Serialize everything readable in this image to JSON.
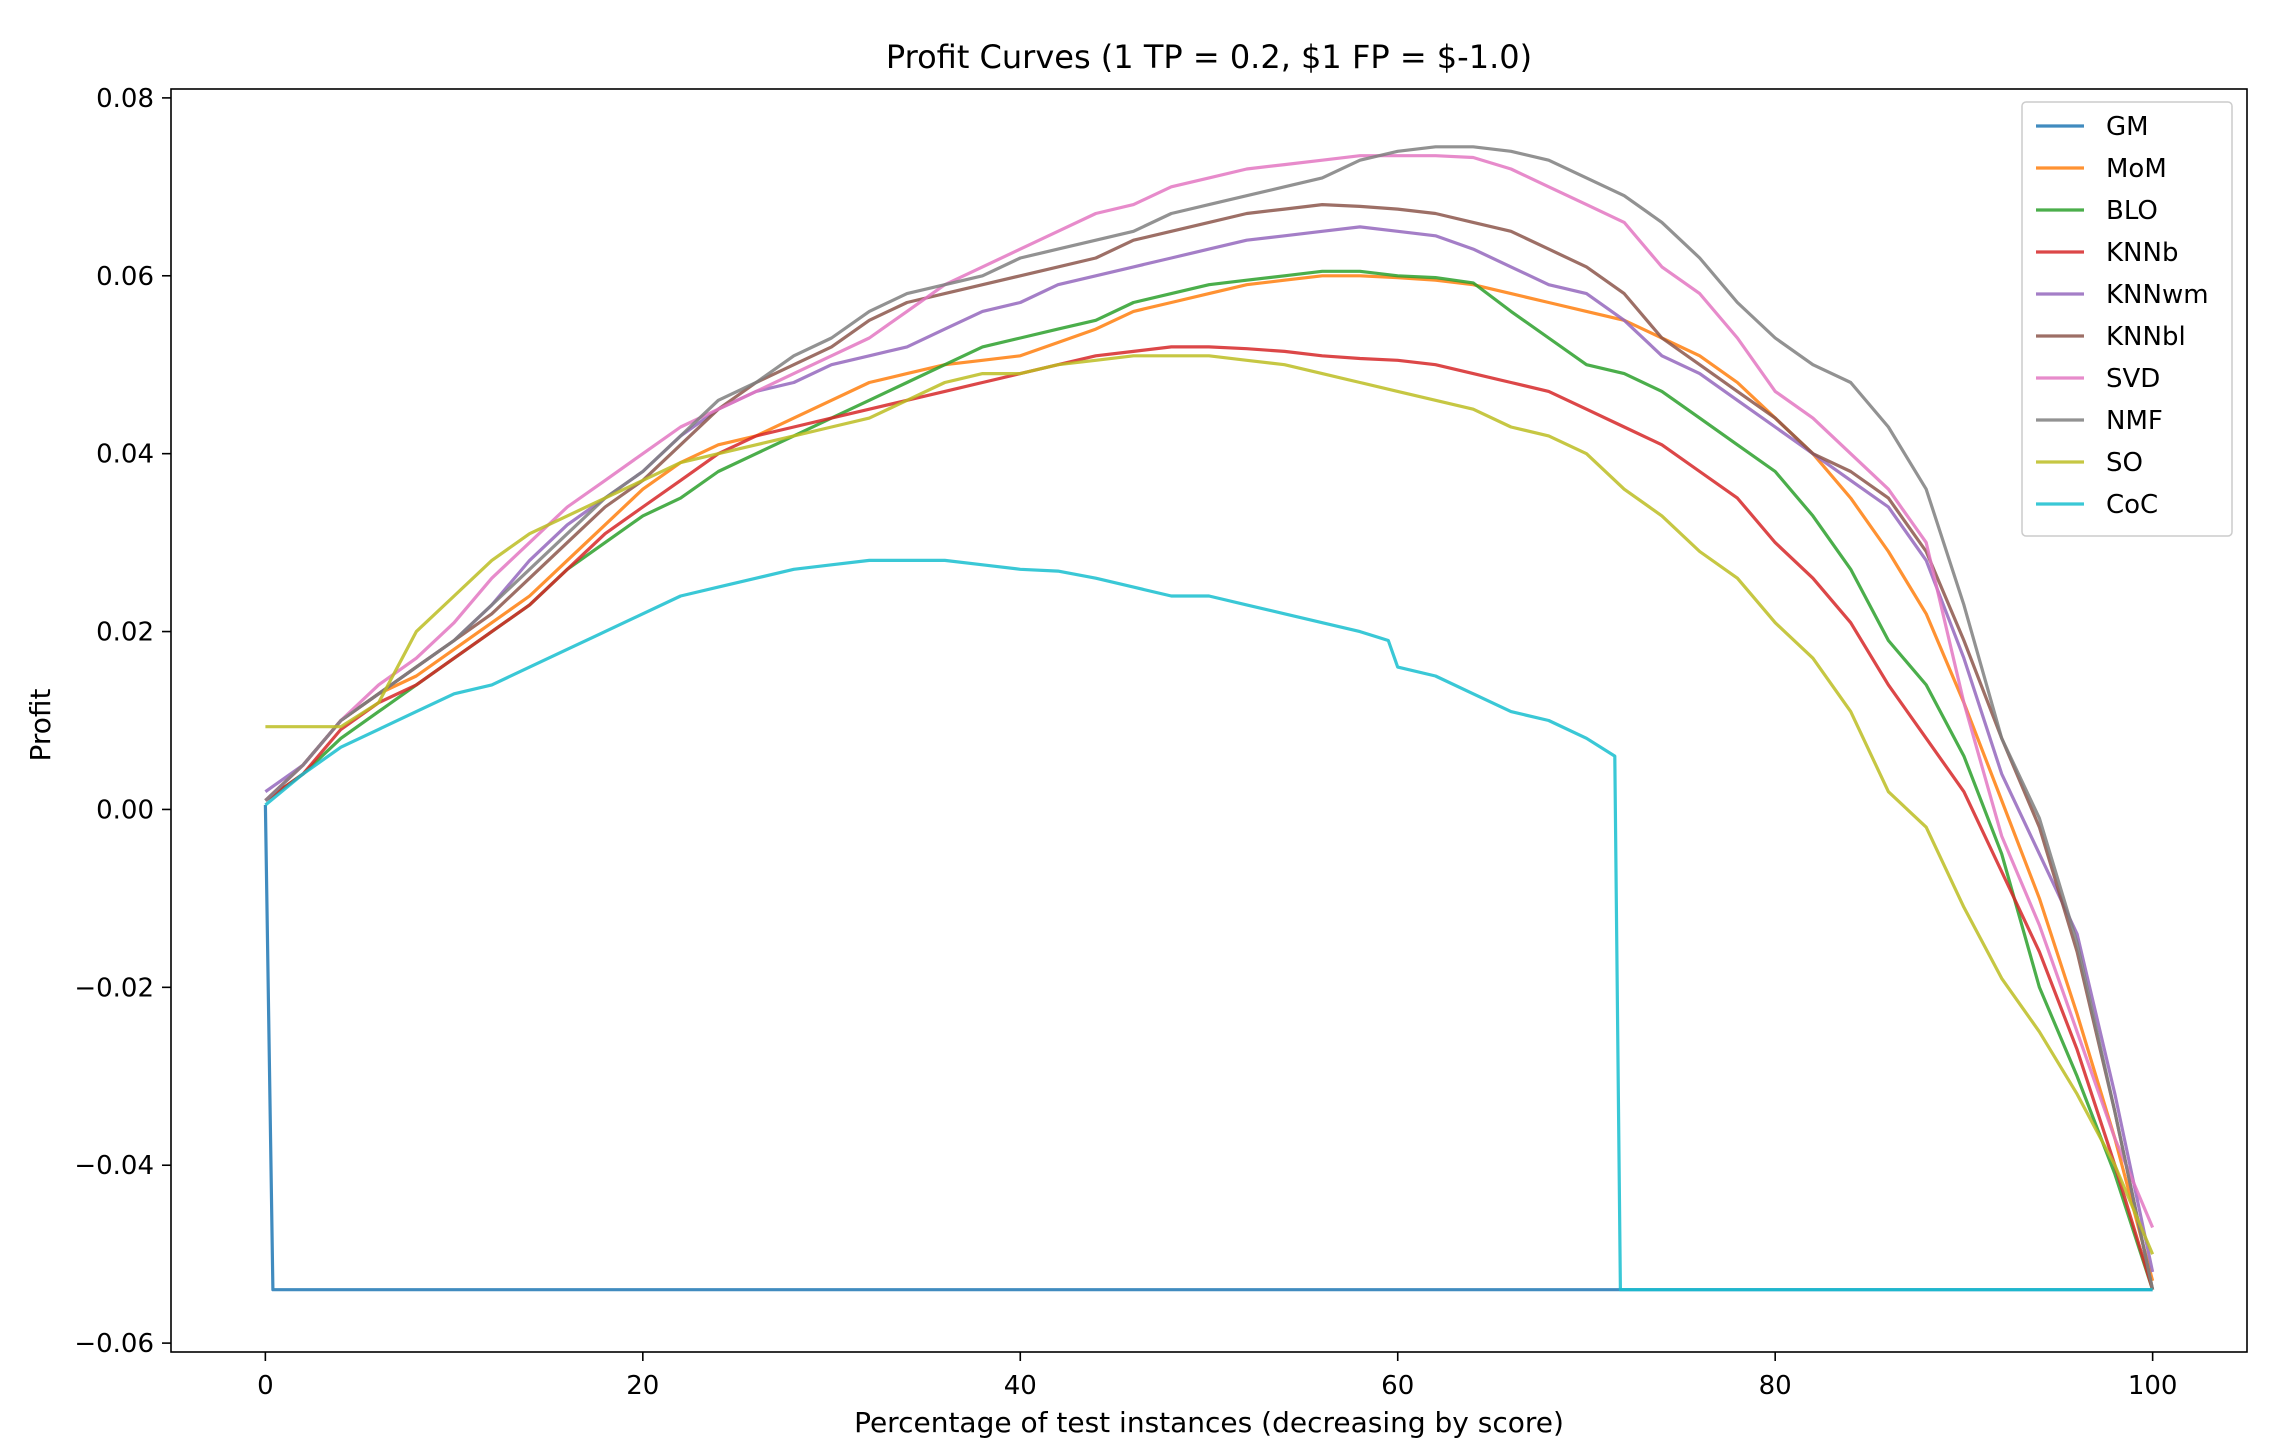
{
  "chart_data": {
    "type": "line",
    "title": "Profit Curves (1 TP = 0.2, $1 FP = $-1.0)",
    "xlabel": "Percentage of test instances (decreasing by score)",
    "ylabel": "Profit",
    "xlim": [
      -5,
      105
    ],
    "ylim": [
      -0.061,
      0.081
    ],
    "xticks": [
      0,
      20,
      40,
      60,
      80,
      100
    ],
    "yticks": [
      -0.06,
      -0.04,
      -0.02,
      0.0,
      0.02,
      0.04,
      0.06,
      0.08
    ],
    "xtick_labels": [
      "0",
      "20",
      "40",
      "60",
      "80",
      "100"
    ],
    "ytick_labels": [
      "−0.06",
      "−0.04",
      "−0.02",
      "0.00",
      "0.02",
      "0.04",
      "0.06",
      "0.08"
    ],
    "grid": false,
    "legend_position": "top-right",
    "series": [
      {
        "name": "GM",
        "color": "#1f77b4",
        "x": [
          0,
          0.4,
          100
        ],
        "y": [
          0.0005,
          -0.054,
          -0.054
        ]
      },
      {
        "name": "MoM",
        "color": "#ff7f0e",
        "x": [
          0,
          2,
          4,
          6,
          8,
          10,
          12,
          14,
          16,
          18,
          20,
          22,
          24,
          26,
          28,
          30,
          32,
          34,
          36,
          38,
          40,
          42,
          44,
          46,
          48,
          50,
          52,
          54,
          56,
          58,
          60,
          62,
          64,
          66,
          68,
          70,
          72,
          74,
          76,
          78,
          80,
          82,
          84,
          86,
          88,
          90,
          92,
          94,
          96,
          98,
          100
        ],
        "y": [
          0.001,
          0.005,
          0.01,
          0.013,
          0.015,
          0.018,
          0.021,
          0.024,
          0.028,
          0.032,
          0.036,
          0.039,
          0.041,
          0.042,
          0.044,
          0.046,
          0.048,
          0.049,
          0.05,
          0.0505,
          0.051,
          0.0525,
          0.054,
          0.056,
          0.057,
          0.058,
          0.059,
          0.0595,
          0.06,
          0.06,
          0.0598,
          0.0595,
          0.059,
          0.058,
          0.057,
          0.056,
          0.055,
          0.053,
          0.051,
          0.048,
          0.044,
          0.04,
          0.035,
          0.029,
          0.022,
          0.012,
          0.001,
          -0.01,
          -0.023,
          -0.037,
          -0.053
        ]
      },
      {
        "name": "BLO",
        "color": "#2ca02c",
        "x": [
          0,
          2,
          4,
          6,
          8,
          10,
          12,
          14,
          16,
          18,
          20,
          22,
          24,
          26,
          28,
          30,
          32,
          34,
          36,
          38,
          40,
          42,
          44,
          46,
          48,
          50,
          52,
          54,
          56,
          58,
          60,
          62,
          64,
          66,
          68,
          70,
          72,
          74,
          76,
          78,
          80,
          82,
          84,
          86,
          88,
          90,
          92,
          94,
          96,
          98,
          100
        ],
        "y": [
          0.001,
          0.004,
          0.008,
          0.011,
          0.014,
          0.017,
          0.02,
          0.023,
          0.027,
          0.03,
          0.033,
          0.035,
          0.038,
          0.04,
          0.042,
          0.044,
          0.046,
          0.048,
          0.05,
          0.052,
          0.053,
          0.054,
          0.055,
          0.057,
          0.058,
          0.059,
          0.0595,
          0.06,
          0.0605,
          0.0605,
          0.06,
          0.0598,
          0.0592,
          0.056,
          0.053,
          0.05,
          0.049,
          0.047,
          0.044,
          0.041,
          0.038,
          0.033,
          0.027,
          0.019,
          0.014,
          0.006,
          -0.005,
          -0.02,
          -0.03,
          -0.041,
          -0.054
        ]
      },
      {
        "name": "KNNb",
        "color": "#d62728",
        "x": [
          0,
          2,
          4,
          6,
          8,
          10,
          12,
          14,
          16,
          18,
          20,
          22,
          24,
          26,
          28,
          30,
          32,
          34,
          36,
          38,
          40,
          42,
          44,
          46,
          48,
          50,
          52,
          54,
          56,
          58,
          60,
          62,
          64,
          66,
          68,
          70,
          72,
          74,
          76,
          78,
          80,
          82,
          84,
          86,
          88,
          90,
          92,
          94,
          96,
          98,
          100
        ],
        "y": [
          0.001,
          0.004,
          0.009,
          0.012,
          0.014,
          0.017,
          0.02,
          0.023,
          0.027,
          0.031,
          0.034,
          0.037,
          0.04,
          0.042,
          0.043,
          0.044,
          0.045,
          0.046,
          0.047,
          0.048,
          0.049,
          0.05,
          0.051,
          0.0515,
          0.052,
          0.052,
          0.0518,
          0.0515,
          0.051,
          0.0507,
          0.0505,
          0.05,
          0.049,
          0.048,
          0.047,
          0.045,
          0.043,
          0.041,
          0.038,
          0.035,
          0.03,
          0.026,
          0.021,
          0.014,
          0.008,
          0.002,
          -0.007,
          -0.016,
          -0.027,
          -0.04,
          -0.054
        ]
      },
      {
        "name": "KNNwm",
        "color": "#9467bd",
        "x": [
          0,
          2,
          4,
          6,
          8,
          10,
          12,
          14,
          16,
          18,
          20,
          22,
          24,
          26,
          28,
          30,
          32,
          34,
          36,
          38,
          40,
          42,
          44,
          46,
          48,
          50,
          52,
          54,
          56,
          58,
          60,
          62,
          64,
          66,
          68,
          70,
          72,
          74,
          76,
          78,
          80,
          82,
          84,
          86,
          88,
          90,
          92,
          94,
          96,
          98,
          100
        ],
        "y": [
          0.002,
          0.005,
          0.01,
          0.013,
          0.016,
          0.019,
          0.023,
          0.028,
          0.032,
          0.035,
          0.038,
          0.042,
          0.045,
          0.047,
          0.048,
          0.05,
          0.051,
          0.052,
          0.054,
          0.056,
          0.057,
          0.059,
          0.06,
          0.061,
          0.062,
          0.063,
          0.064,
          0.0645,
          0.065,
          0.0655,
          0.065,
          0.0645,
          0.063,
          0.061,
          0.059,
          0.058,
          0.055,
          0.051,
          0.049,
          0.046,
          0.043,
          0.04,
          0.037,
          0.034,
          0.028,
          0.017,
          0.004,
          -0.005,
          -0.014,
          -0.032,
          -0.052
        ]
      },
      {
        "name": "KNNbl",
        "color": "#8c564b",
        "x": [
          0,
          2,
          4,
          6,
          8,
          10,
          12,
          14,
          16,
          18,
          20,
          22,
          24,
          26,
          28,
          30,
          32,
          34,
          36,
          38,
          40,
          42,
          44,
          46,
          48,
          50,
          52,
          54,
          56,
          58,
          60,
          62,
          64,
          66,
          68,
          70,
          72,
          74,
          76,
          78,
          80,
          82,
          84,
          86,
          88,
          90,
          92,
          94,
          96,
          98,
          100
        ],
        "y": [
          0.001,
          0.005,
          0.01,
          0.013,
          0.016,
          0.019,
          0.022,
          0.026,
          0.03,
          0.034,
          0.037,
          0.041,
          0.045,
          0.048,
          0.05,
          0.052,
          0.055,
          0.057,
          0.058,
          0.059,
          0.06,
          0.061,
          0.062,
          0.064,
          0.065,
          0.066,
          0.067,
          0.0675,
          0.068,
          0.0678,
          0.0675,
          0.067,
          0.066,
          0.065,
          0.063,
          0.061,
          0.058,
          0.053,
          0.05,
          0.047,
          0.044,
          0.04,
          0.038,
          0.035,
          0.029,
          0.019,
          0.008,
          -0.002,
          -0.016,
          -0.034,
          -0.054
        ]
      },
      {
        "name": "SVD",
        "color": "#e377c2",
        "x": [
          0,
          2,
          4,
          6,
          8,
          10,
          12,
          14,
          16,
          18,
          20,
          22,
          24,
          26,
          28,
          30,
          32,
          34,
          36,
          38,
          40,
          42,
          44,
          46,
          48,
          50,
          52,
          54,
          56,
          58,
          60,
          62,
          64,
          66,
          68,
          70,
          72,
          74,
          76,
          78,
          80,
          82,
          84,
          86,
          88,
          90,
          92,
          94,
          96,
          98,
          100
        ],
        "y": [
          0.001,
          0.005,
          0.01,
          0.014,
          0.017,
          0.021,
          0.026,
          0.03,
          0.034,
          0.037,
          0.04,
          0.043,
          0.045,
          0.047,
          0.049,
          0.051,
          0.053,
          0.056,
          0.059,
          0.061,
          0.063,
          0.065,
          0.067,
          0.068,
          0.07,
          0.071,
          0.072,
          0.0725,
          0.073,
          0.0735,
          0.0735,
          0.0735,
          0.0733,
          0.072,
          0.07,
          0.068,
          0.066,
          0.061,
          0.058,
          0.053,
          0.047,
          0.044,
          0.04,
          0.036,
          0.03,
          0.012,
          -0.003,
          -0.013,
          -0.025,
          -0.037,
          -0.047
        ]
      },
      {
        "name": "NMF",
        "color": "#7f7f7f",
        "x": [
          0,
          2,
          4,
          6,
          8,
          10,
          12,
          14,
          16,
          18,
          20,
          22,
          24,
          26,
          28,
          30,
          32,
          34,
          36,
          38,
          40,
          42,
          44,
          46,
          48,
          50,
          52,
          54,
          56,
          58,
          60,
          62,
          64,
          66,
          68,
          70,
          72,
          74,
          76,
          78,
          80,
          82,
          84,
          86,
          88,
          90,
          92,
          94,
          96,
          98,
          100
        ],
        "y": [
          0.001,
          0.005,
          0.01,
          0.013,
          0.016,
          0.019,
          0.023,
          0.027,
          0.031,
          0.035,
          0.038,
          0.042,
          0.046,
          0.048,
          0.051,
          0.053,
          0.056,
          0.058,
          0.059,
          0.06,
          0.062,
          0.063,
          0.064,
          0.065,
          0.067,
          0.068,
          0.069,
          0.07,
          0.071,
          0.073,
          0.074,
          0.0745,
          0.0745,
          0.074,
          0.073,
          0.071,
          0.069,
          0.066,
          0.062,
          0.057,
          0.053,
          0.05,
          0.048,
          0.043,
          0.036,
          0.023,
          0.008,
          -0.001,
          -0.015,
          -0.034,
          -0.054
        ]
      },
      {
        "name": "SO",
        "color": "#bcbd22",
        "x": [
          0,
          2,
          4,
          6,
          8,
          10,
          12,
          14,
          16,
          18,
          20,
          22,
          24,
          26,
          28,
          30,
          32,
          34,
          36,
          38,
          40,
          42,
          44,
          46,
          48,
          50,
          52,
          54,
          56,
          58,
          60,
          62,
          64,
          66,
          68,
          70,
          72,
          74,
          76,
          78,
          80,
          82,
          84,
          86,
          88,
          90,
          92,
          94,
          96,
          98,
          100
        ],
        "y": [
          0.0093,
          0.0093,
          0.0093,
          0.012,
          0.02,
          0.024,
          0.028,
          0.031,
          0.033,
          0.035,
          0.037,
          0.039,
          0.04,
          0.041,
          0.042,
          0.043,
          0.044,
          0.046,
          0.048,
          0.049,
          0.049,
          0.05,
          0.0505,
          0.051,
          0.051,
          0.051,
          0.0505,
          0.05,
          0.049,
          0.048,
          0.047,
          0.046,
          0.045,
          0.043,
          0.042,
          0.04,
          0.036,
          0.033,
          0.029,
          0.026,
          0.021,
          0.017,
          0.011,
          0.002,
          -0.002,
          -0.011,
          -0.019,
          -0.025,
          -0.032,
          -0.04,
          -0.05
        ]
      },
      {
        "name": "CoC",
        "color": "#17becf",
        "x": [
          0,
          2,
          4,
          6,
          8,
          10,
          12,
          14,
          16,
          18,
          20,
          22,
          24,
          26,
          28,
          30,
          32,
          34,
          36,
          38,
          40,
          42,
          44,
          46,
          48,
          50,
          52,
          54,
          56,
          58,
          59.5,
          60,
          62,
          64,
          66,
          68,
          70,
          71.5,
          71.8,
          100
        ],
        "y": [
          0.0005,
          0.004,
          0.007,
          0.009,
          0.011,
          0.013,
          0.014,
          0.016,
          0.018,
          0.02,
          0.022,
          0.024,
          0.025,
          0.026,
          0.027,
          0.0275,
          0.028,
          0.028,
          0.028,
          0.0275,
          0.027,
          0.0268,
          0.026,
          0.025,
          0.024,
          0.024,
          0.023,
          0.022,
          0.021,
          0.02,
          0.019,
          0.016,
          0.015,
          0.013,
          0.011,
          0.01,
          0.008,
          0.006,
          -0.054,
          -0.054
        ]
      }
    ]
  }
}
